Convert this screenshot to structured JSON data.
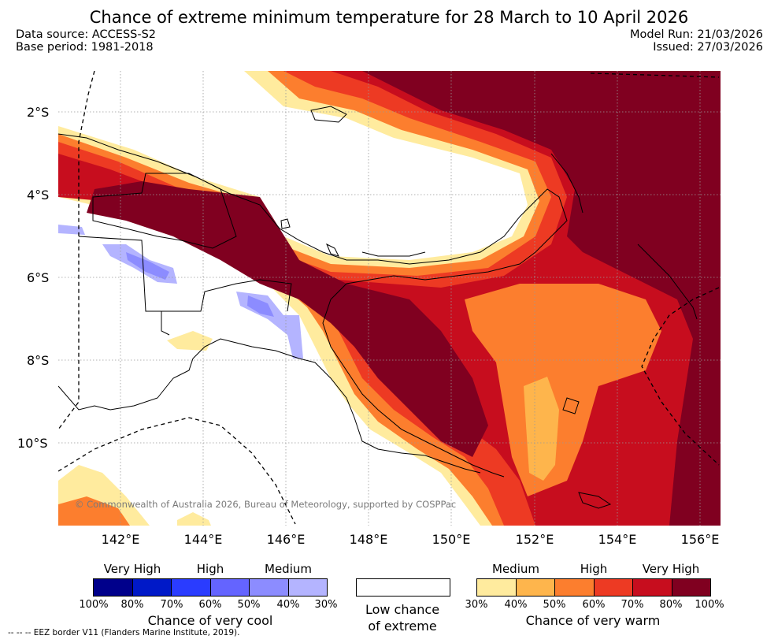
{
  "title": "Chance of extreme minimum temperature for 28 March to 10 April 2026",
  "meta": {
    "data_source": "Data source: ACCESS-S2",
    "base_period": "Base period: 1981-2018",
    "model_run": "Model Run: 21/03/2026",
    "issued": "Issued: 27/03/2026"
  },
  "map": {
    "lat_labels": [
      "2°S",
      "4°S",
      "6°S",
      "8°S",
      "10°S"
    ],
    "lon_labels": [
      "142°E",
      "144°E",
      "146°E",
      "148°E",
      "150°E",
      "152°E",
      "154°E",
      "156°E"
    ],
    "copyright": "© Commonwealth of Australia 2026, Bureau of Meteorology, supported by COSPPac"
  },
  "legend": {
    "cool": {
      "categories": [
        "Very High",
        "High",
        "Medium"
      ],
      "ticks": [
        "100%",
        "80%",
        "70%",
        "60%",
        "50%",
        "40%",
        "30%"
      ],
      "colors": [
        "#00008b",
        "#0019c8",
        "#2a3cff",
        "#6464ff",
        "#8c8cff",
        "#b4b4ff"
      ],
      "title": "Chance of very cool"
    },
    "neutral": {
      "line1": "Low chance",
      "line2": "of extreme"
    },
    "warm": {
      "categories": [
        "Medium",
        "High",
        "Very High"
      ],
      "ticks": [
        "30%",
        "40%",
        "50%",
        "60%",
        "70%",
        "80%",
        "100%"
      ],
      "colors": [
        "#ffeb9e",
        "#feb54c",
        "#fc7e2e",
        "#ed3a23",
        "#c70d1e",
        "#800020"
      ],
      "title": "Chance of very warm"
    }
  },
  "eez_note": "--  --  -- EEZ border V11 (Flanders Marine Institute, 2019)."
}
